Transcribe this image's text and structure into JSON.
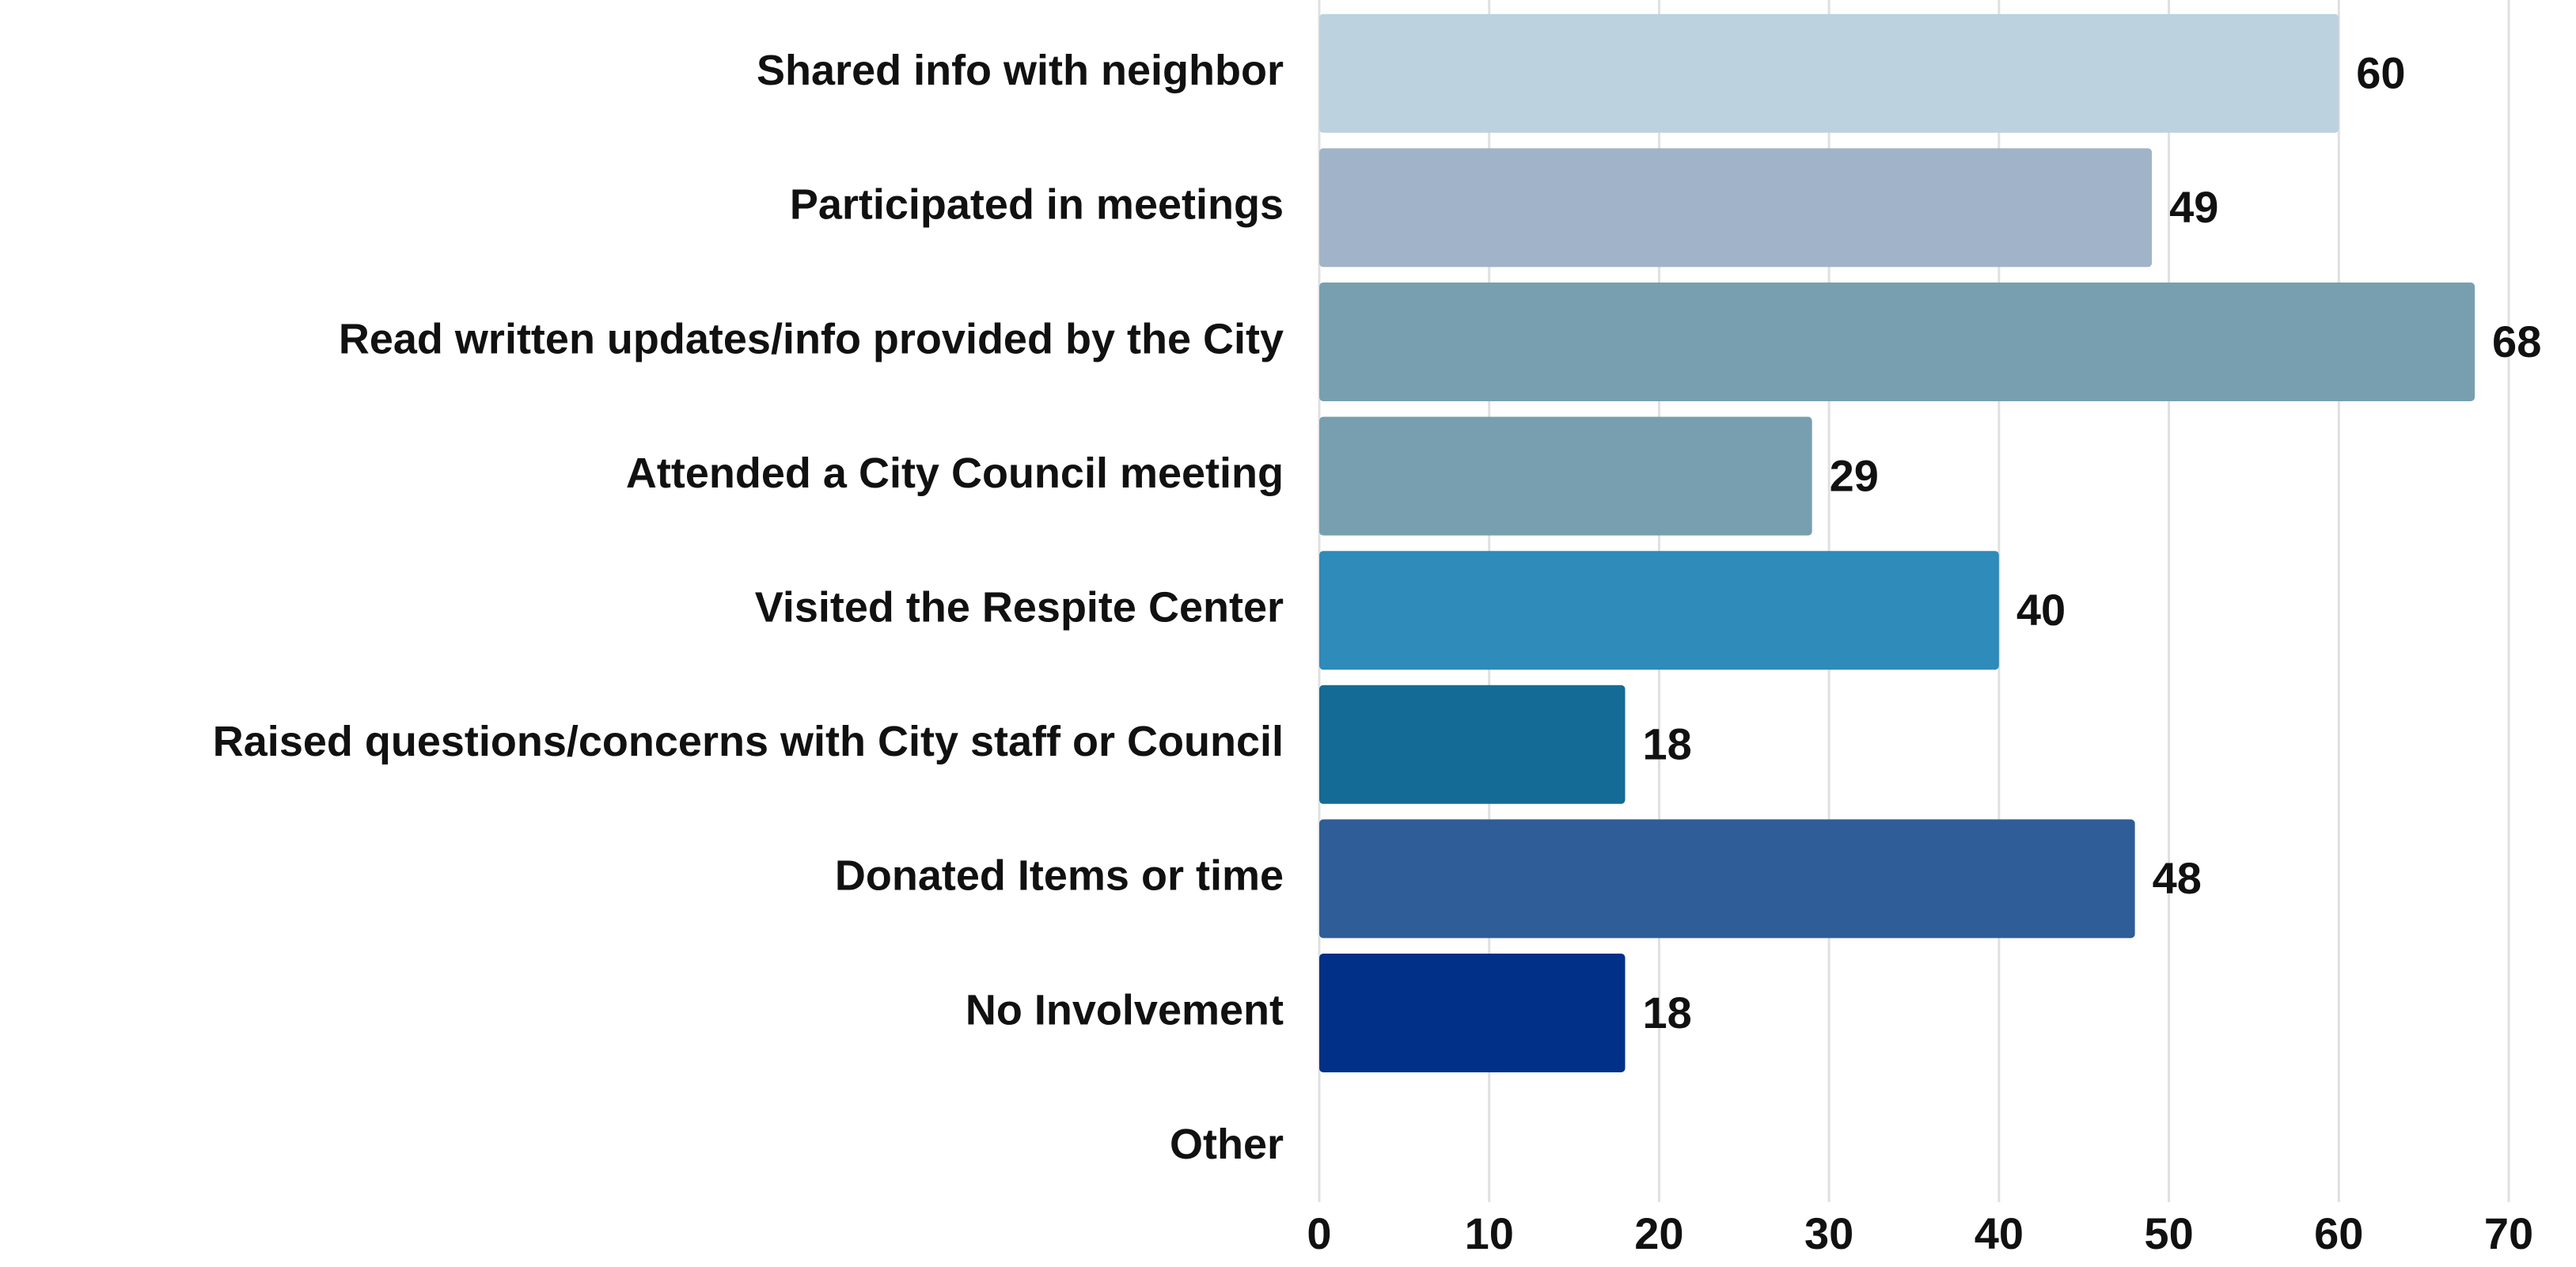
{
  "chart_data": {
    "type": "hbar",
    "categories": [
      "Shared info with neighbor",
      "Participated in meetings",
      "Read written updates/info provided by the City",
      "Attended a City Council meeting",
      "Visited the Respite Center",
      "Raised questions/concerns with City staff or Council",
      "Donated Items or time",
      "No Involvement",
      "Other"
    ],
    "values": [
      60,
      49,
      68,
      29,
      40,
      18,
      48,
      18,
      null
    ],
    "colors": [
      "#bcd2de",
      "#a0b3c8",
      "#789fb0",
      "#789fb0",
      "#2e8bba",
      "#136b96",
      "#2f5d98",
      "#003087",
      "#003087"
    ],
    "xlim": [
      0,
      70
    ],
    "xticks": [
      0,
      10,
      20,
      30,
      40,
      50,
      60,
      70
    ],
    "grid": true
  }
}
